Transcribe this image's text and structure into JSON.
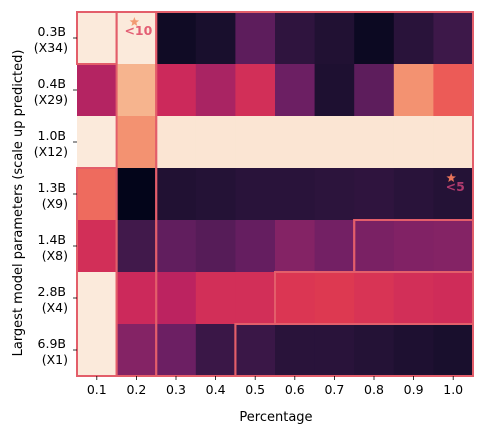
{
  "chart_data": {
    "type": "heatmap",
    "xlabel": "Percentage",
    "ylabel": "Largest model parameters (scale up predicted)",
    "x": [
      "0.1",
      "0.2",
      "0.3",
      "0.4",
      "0.5",
      "0.6",
      "0.7",
      "0.8",
      "0.9",
      "1.0"
    ],
    "y": [
      {
        "line1": "0.3B",
        "line2": "(X34)"
      },
      {
        "line1": "0.4B",
        "line2": "(X29)"
      },
      {
        "line1": "1.0B",
        "line2": "(X12)"
      },
      {
        "line1": "1.3B",
        "line2": "(X9)"
      },
      {
        "line1": "1.4B",
        "line2": "(X8)"
      },
      {
        "line1": "2.8B",
        "line2": "(X4)"
      },
      {
        "line1": "6.9B",
        "line2": "(X1)"
      }
    ],
    "colorscale": [
      "#fbeadb",
      "#f5a67b",
      "#e9434b",
      "#c5235f",
      "#962566",
      "#6a1f63",
      "#3d1849",
      "#1a0f2e",
      "#03051a"
    ],
    "values": [
      [
        0.0,
        0.0,
        0.93,
        0.88,
        0.66,
        0.8,
        0.85,
        0.95,
        0.82,
        0.75
      ],
      [
        0.42,
        0.1,
        0.35,
        0.45,
        0.33,
        0.62,
        0.86,
        0.66,
        0.15,
        0.22
      ],
      [
        0.0,
        0.15,
        0.01,
        0.01,
        0.01,
        0.01,
        0.01,
        0.01,
        0.01,
        0.01
      ],
      [
        0.2,
        1.0,
        0.85,
        0.84,
        0.82,
        0.82,
        0.81,
        0.8,
        0.82,
        0.84
      ],
      [
        0.33,
        0.74,
        0.65,
        0.68,
        0.64,
        0.55,
        0.6,
        0.58,
        0.56,
        0.55
      ],
      [
        0.0,
        0.35,
        0.4,
        0.33,
        0.33,
        0.3,
        0.29,
        0.31,
        0.33,
        0.34
      ],
      [
        0.0,
        0.55,
        0.62,
        0.76,
        0.76,
        0.82,
        0.82,
        0.84,
        0.86,
        0.88
      ]
    ],
    "annotations": [
      {
        "text": "<10",
        "col": 1,
        "row": 0,
        "color": "#e35e73",
        "star_color": "#f29a73"
      },
      {
        "text": "<5",
        "col": 9,
        "row": 3,
        "color": "#b03a6d",
        "star_color": "#e8745a"
      }
    ],
    "boundary_color": "#e35e6a",
    "regions": [
      {
        "cells": [
          [
            0,
            1
          ],
          [
            1,
            1
          ],
          [
            2,
            1
          ],
          [
            3,
            1
          ],
          [
            4,
            1
          ],
          [
            5,
            1
          ],
          [
            6,
            1
          ]
        ]
      },
      {
        "cells": [
          [
            0,
            0
          ]
        ]
      },
      {
        "cells": [
          [
            0,
            2
          ],
          [
            0,
            3
          ],
          [
            0,
            4
          ],
          [
            0,
            5
          ],
          [
            0,
            6
          ],
          [
            0,
            7
          ],
          [
            0,
            8
          ],
          [
            0,
            9
          ],
          [
            1,
            2
          ],
          [
            1,
            3
          ],
          [
            1,
            4
          ],
          [
            1,
            5
          ],
          [
            1,
            6
          ],
          [
            1,
            7
          ],
          [
            1,
            8
          ],
          [
            1,
            9
          ],
          [
            2,
            2
          ],
          [
            2,
            3
          ],
          [
            2,
            4
          ],
          [
            2,
            5
          ],
          [
            2,
            6
          ],
          [
            2,
            7
          ],
          [
            2,
            8
          ],
          [
            2,
            9
          ],
          [
            3,
            2
          ],
          [
            3,
            3
          ],
          [
            3,
            4
          ],
          [
            3,
            5
          ],
          [
            3,
            6
          ],
          [
            3,
            7
          ],
          [
            3,
            8
          ],
          [
            3,
            9
          ],
          [
            4,
            2
          ],
          [
            4,
            3
          ],
          [
            4,
            4
          ],
          [
            4,
            5
          ],
          [
            4,
            6
          ],
          [
            5,
            2
          ],
          [
            5,
            3
          ],
          [
            5,
            4
          ],
          [
            6,
            2
          ],
          [
            6,
            3
          ]
        ]
      },
      {
        "cells": [
          [
            4,
            7
          ],
          [
            4,
            8
          ],
          [
            4,
            9
          ]
        ]
      },
      {
        "cells": [
          [
            5,
            5
          ],
          [
            5,
            6
          ],
          [
            5,
            7
          ],
          [
            5,
            8
          ],
          [
            5,
            9
          ]
        ]
      },
      {
        "cells": [
          [
            6,
            4
          ],
          [
            6,
            5
          ],
          [
            6,
            6
          ],
          [
            6,
            7
          ],
          [
            6,
            8
          ],
          [
            6,
            9
          ]
        ]
      },
      {
        "cells": [
          [
            3,
            0
          ],
          [
            4,
            0
          ],
          [
            5,
            0
          ],
          [
            6,
            0
          ]
        ]
      }
    ]
  }
}
